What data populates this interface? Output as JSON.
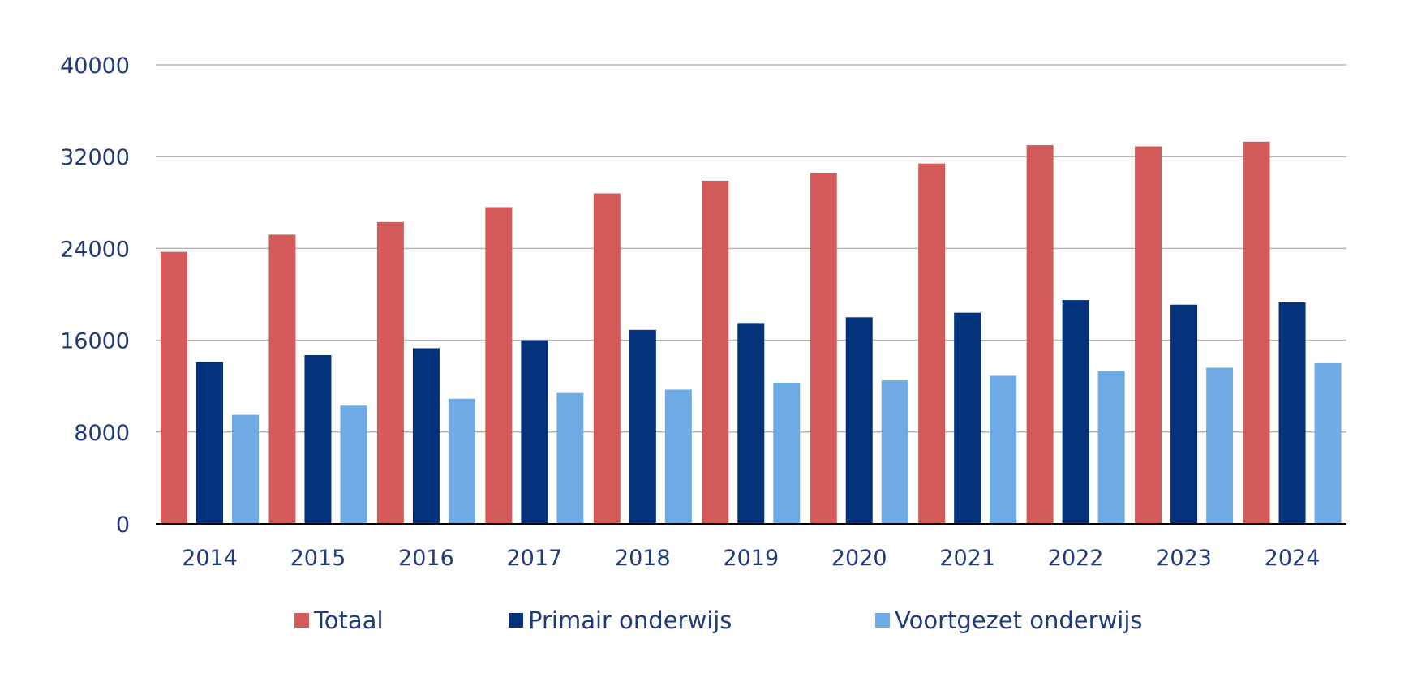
{
  "chart_data": {
    "type": "bar",
    "title": "",
    "xlabel": "",
    "ylabel": "",
    "categories": [
      "2014",
      "2015",
      "2016",
      "2017",
      "2018",
      "2019",
      "2020",
      "2021",
      "2022",
      "2023",
      "2024"
    ],
    "series": [
      {
        "name": "Totaal",
        "color": "#d45a5a",
        "values": [
          23700,
          25200,
          26300,
          27600,
          28800,
          29900,
          30600,
          31400,
          33000,
          32900,
          33300
        ]
      },
      {
        "name": "Primair onderwijs",
        "color": "#03327a",
        "values": [
          14100,
          14700,
          15300,
          16000,
          16900,
          17500,
          18000,
          18400,
          19500,
          19100,
          19300
        ]
      },
      {
        "name": "Voortgezet onderwijs",
        "color": "#6eabe5",
        "values": [
          9500,
          10300,
          10900,
          11400,
          11700,
          12300,
          12500,
          12900,
          13300,
          13600,
          14000
        ]
      }
    ],
    "ylim": [
      0,
      40000
    ],
    "yticks": [
      "0",
      "8000",
      "16000",
      "24000",
      "32000",
      "40000"
    ],
    "grid": true,
    "legend_position": "bottom"
  }
}
